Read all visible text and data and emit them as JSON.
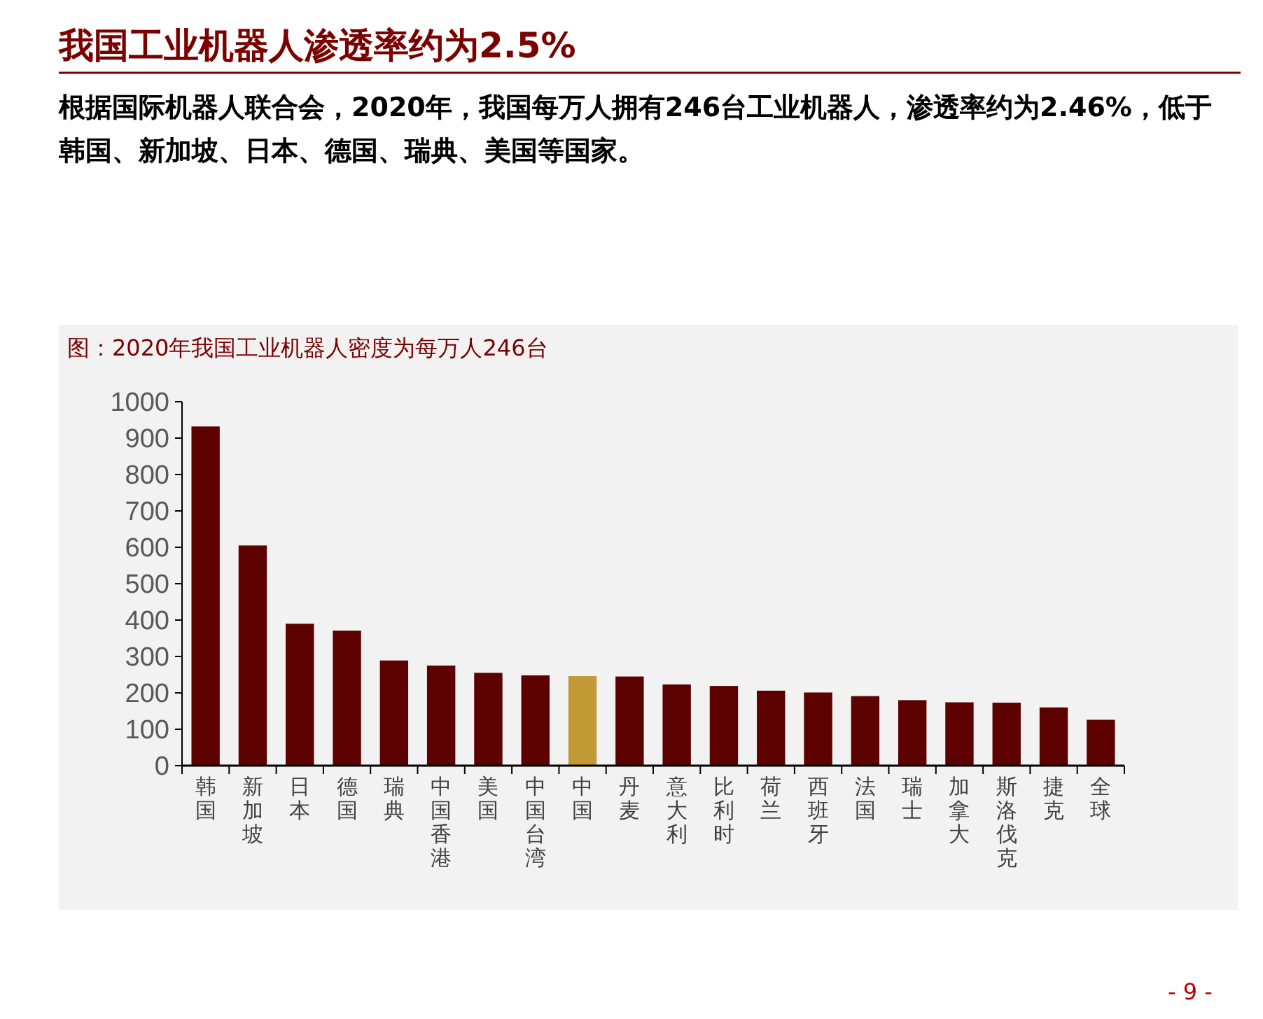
{
  "chart_data": {
    "type": "bar",
    "title": "我国工业机器人渗透率约为2.5%",
    "subtitle": "根据国际机器人联合会，2020年，我国每万人拥有246台工业机器人，渗透率约为2.46%，低于韩国、新加坡、日本、德国、瑞典、美国等国家。",
    "annotations": [
      "图：2020年我国工业机器人密度为每万人246台",
      "- 9 -"
    ],
    "categories": [
      "韩国",
      "新加坡",
      "日本",
      "德国",
      "瑞典",
      "中国香港",
      "美国",
      "中国台湾",
      "中国",
      "丹麦",
      "意大利",
      "比利时",
      "荷兰",
      "西班牙",
      "法国",
      "瑞士",
      "加拿大",
      "斯洛伐克",
      "捷克",
      "全球"
    ],
    "values": [
      932,
      605,
      390,
      371,
      289,
      275,
      255,
      248,
      246,
      245,
      223,
      219,
      206,
      201,
      191,
      180,
      174,
      173,
      160,
      126
    ],
    "colors": [
      "#5c0000",
      "#5c0000",
      "#5c0000",
      "#5c0000",
      "#5c0000",
      "#5c0000",
      "#5c0000",
      "#5c0000",
      "#c09a35",
      "#5c0000",
      "#5c0000",
      "#5c0000",
      "#5c0000",
      "#5c0000",
      "#5c0000",
      "#5c0000",
      "#5c0000",
      "#5c0000",
      "#5c0000",
      "#5c0000"
    ],
    "ylim": [
      0,
      1000
    ],
    "yticks": [
      0,
      100,
      200,
      300,
      400,
      500,
      600,
      700,
      800,
      900,
      1000
    ],
    "grid": false
  }
}
